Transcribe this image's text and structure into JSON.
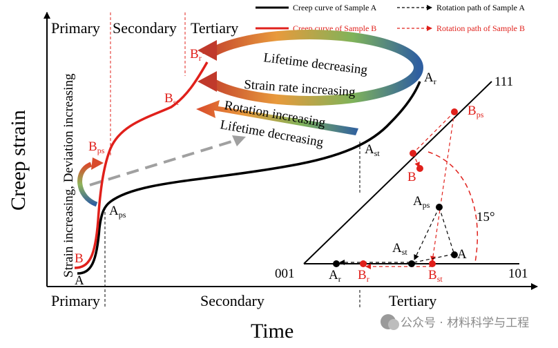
{
  "axes": {
    "y_label": "Creep strain",
    "x_label": "Time"
  },
  "stages_top": [
    "Primary",
    "Secondary",
    "Tertiary"
  ],
  "stages_bottom": [
    "Primary",
    "Secondary",
    "Tertiary"
  ],
  "legend": {
    "curve_a": "Creep curve of Sample A",
    "curve_b": "Creep curve of Sample B",
    "rotation_a": "Rotation path of Sample A",
    "rotation_b": "Rotation path of Sample B"
  },
  "annotations": {
    "lifetime_decreasing_top": "Lifetime decreasing",
    "strain_rate_increasing": "Strain rate increasing",
    "rotation_increasing": "Rotation increasing",
    "lifetime_decreasing_mid": "Lifetime decreasing",
    "vertical_note": "Strain increasing, Deviation increasing"
  },
  "points": {
    "A": {
      "base": "A",
      "sub": ""
    },
    "B": {
      "base": "B",
      "sub": ""
    },
    "Aps": {
      "base": "A",
      "sub": "ps"
    },
    "Bps": {
      "base": "B",
      "sub": "ps"
    },
    "Bst": {
      "base": "B",
      "sub": "st"
    },
    "Br": {
      "base": "B",
      "sub": "r"
    },
    "Ar": {
      "base": "A",
      "sub": "r"
    },
    "Ast": {
      "base": "A",
      "sub": "st"
    }
  },
  "triangle": {
    "corner_001": "001",
    "corner_101": "101",
    "corner_111": "111",
    "angle": "15°",
    "labels": {
      "Bps": {
        "base": "B",
        "sub": "ps"
      },
      "B": {
        "base": "B",
        "sub": ""
      },
      "Aps": {
        "base": "A",
        "sub": "ps"
      },
      "A": {
        "base": "A",
        "sub": ""
      },
      "Ast": {
        "base": "A",
        "sub": "st"
      },
      "Ar": {
        "base": "A",
        "sub": "r"
      },
      "Br": {
        "base": "B",
        "sub": "r"
      },
      "Bst": {
        "base": "B",
        "sub": "st"
      }
    }
  },
  "watermark": "公众号 · 材料科学与工程",
  "colors": {
    "sample_a": "#000000",
    "sample_b": "#e0201b",
    "guide_dash": "#999999",
    "ring_start": "#c0392b",
    "ring_end": "#3a6ea5"
  }
}
